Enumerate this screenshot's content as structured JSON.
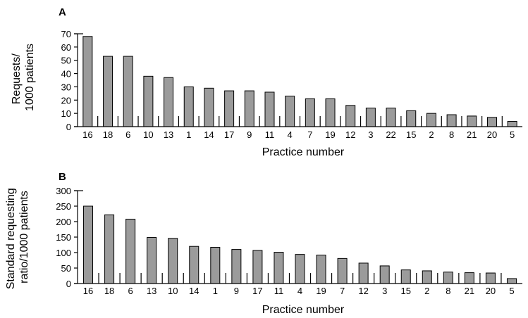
{
  "chart_data": [
    {
      "panel": "A",
      "type": "bar",
      "categories": [
        "16",
        "18",
        "6",
        "10",
        "13",
        "1",
        "14",
        "17",
        "9",
        "11",
        "4",
        "7",
        "19",
        "12",
        "3",
        "22",
        "15",
        "2",
        "8",
        "21",
        "20",
        "5"
      ],
      "values": [
        68,
        53,
        53,
        38,
        37,
        30,
        29,
        27,
        27,
        26,
        23,
        21,
        21,
        16,
        14,
        14,
        12,
        10,
        9,
        8,
        7,
        4
      ],
      "ylabel_lines": [
        "Requests/",
        "1000 patients"
      ],
      "xlabel": "Practice number",
      "ylim": [
        0,
        70
      ],
      "yticks": [
        0,
        10,
        20,
        30,
        40,
        50,
        60,
        70
      ],
      "grid": false
    },
    {
      "panel": "B",
      "type": "bar",
      "categories": [
        "16",
        "18",
        "6",
        "13",
        "10",
        "14",
        "1",
        "9",
        "17",
        "11",
        "4",
        "19",
        "7",
        "12",
        "3",
        "15",
        "2",
        "8",
        "21",
        "20",
        "5"
      ],
      "values": [
        250,
        222,
        208,
        149,
        146,
        120,
        117,
        110,
        107,
        101,
        94,
        92,
        81,
        66,
        57,
        44,
        41,
        37,
        35,
        34,
        16
      ],
      "ylabel_lines": [
        "Standard requesting",
        "ratio/1000 patients"
      ],
      "xlabel": "Practice number",
      "ylim": [
        0,
        300
      ],
      "yticks": [
        0,
        50,
        100,
        150,
        200,
        250,
        300
      ],
      "grid": false
    }
  ]
}
